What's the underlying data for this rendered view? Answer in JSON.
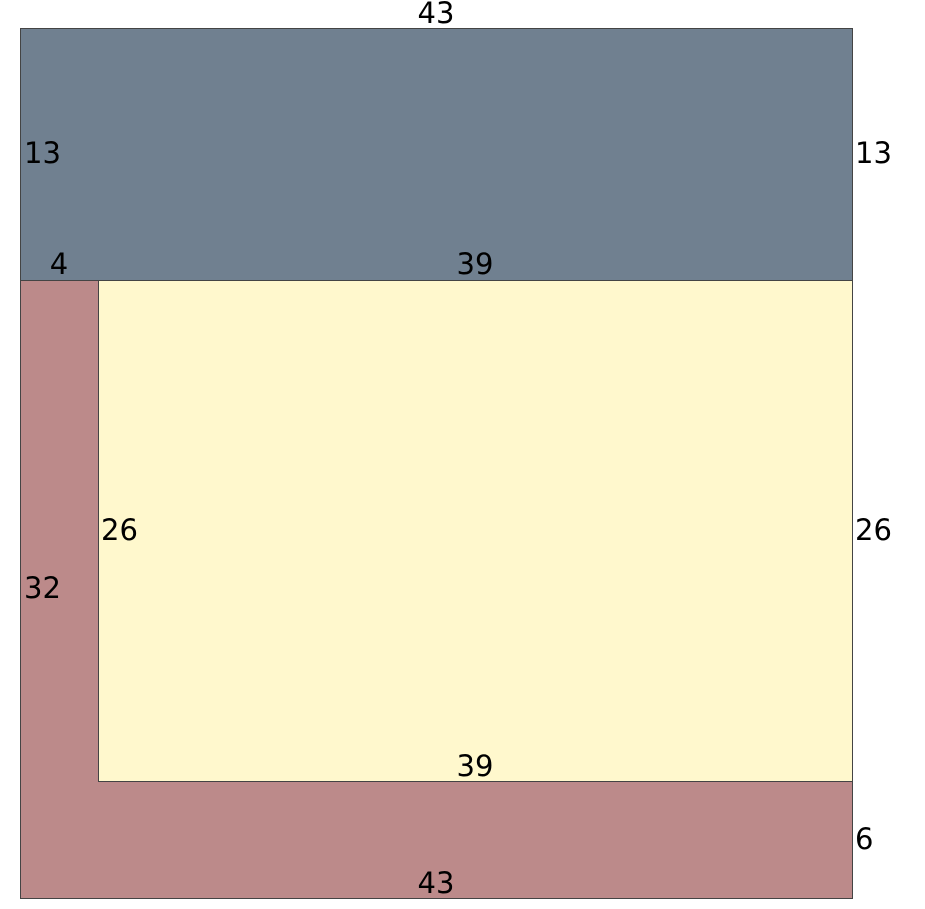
{
  "colors": {
    "top_region": "#708090",
    "inner_region": "#FFF8CD",
    "l_region": "#BC8A8A",
    "stroke": "#444444"
  },
  "regions": [
    {
      "id": "top",
      "width": 43,
      "height": 13
    },
    {
      "id": "inner",
      "width": 39,
      "height": 26
    },
    {
      "id": "l-shape",
      "width": 43,
      "height": 32,
      "arm_width": 4,
      "bottom_height": 6
    }
  ],
  "labels": {
    "top_width": "43",
    "top_left_height": "13",
    "top_right_height": "13",
    "l_arm_width": "4",
    "inner_top_width": "39",
    "inner_left_height": "26",
    "inner_right_height": "26",
    "l_left_height": "32",
    "inner_bottom_width": "39",
    "l_bottom_height": "6",
    "bottom_width": "43"
  }
}
